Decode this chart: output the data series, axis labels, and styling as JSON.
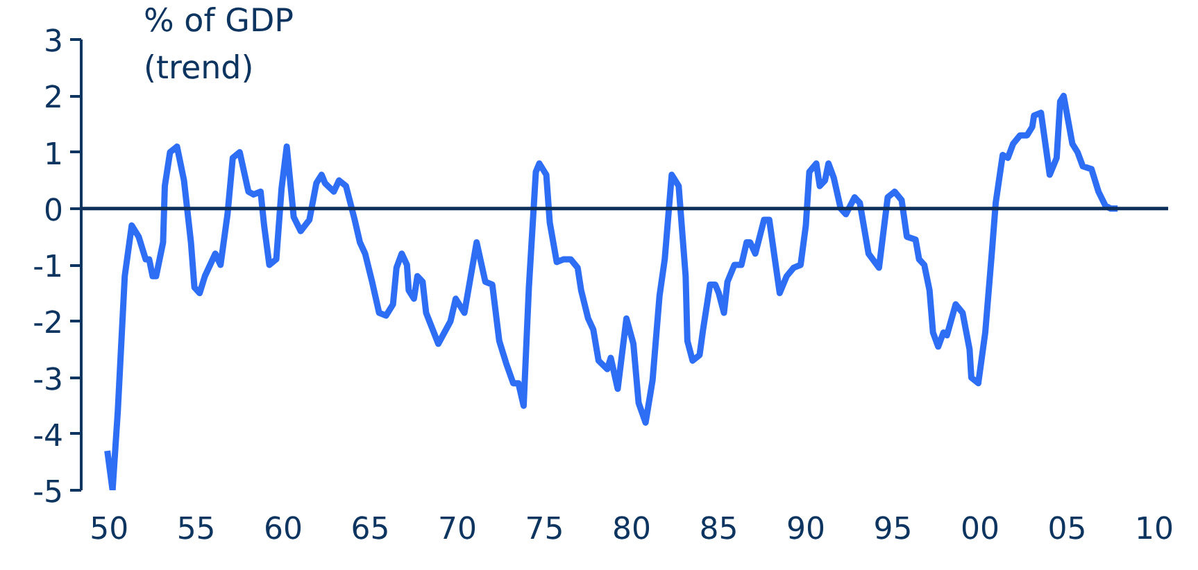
{
  "chart_data": {
    "type": "line",
    "ylabel": "% of GDP\n(trend)",
    "x": [
      1949.9,
      1950.2,
      1950.5,
      1950.9,
      1951.3,
      1951.7,
      1952.1,
      1952.3,
      1952.5,
      1952.7,
      1953.1,
      1953.2,
      1953.5,
      1953.9,
      1954.3,
      1954.7,
      1954.9,
      1955.2,
      1955.5,
      1956.1,
      1956.4,
      1956.8,
      1957.1,
      1957.5,
      1958.0,
      1958.3,
      1958.7,
      1958.9,
      1959.2,
      1959.6,
      1959.9,
      1960.2,
      1960.6,
      1961.0,
      1961.5,
      1961.9,
      1962.2,
      1962.4,
      1962.9,
      1963.2,
      1963.6,
      1964.1,
      1964.4,
      1964.7,
      1965.1,
      1965.5,
      1965.9,
      1966.3,
      1966.5,
      1966.8,
      1967.1,
      1967.2,
      1967.5,
      1967.7,
      1968.0,
      1968.2,
      1968.9,
      1969.6,
      1969.9,
      1970.4,
      1971.1,
      1971.6,
      1972.0,
      1972.4,
      1972.8,
      1973.2,
      1973.5,
      1973.8,
      1974.1,
      1974.5,
      1974.7,
      1975.1,
      1975.3,
      1975.7,
      1976.1,
      1976.5,
      1976.9,
      1977.1,
      1977.5,
      1977.8,
      1978.1,
      1978.6,
      1978.8,
      1979.2,
      1979.7,
      1980.1,
      1980.4,
      1980.8,
      1981.2,
      1981.6,
      1981.9,
      1982.3,
      1982.7,
      1983.1,
      1983.2,
      1983.5,
      1983.9,
      1984.1,
      1984.5,
      1984.8,
      1985.0,
      1985.3,
      1985.5,
      1985.9,
      1986.3,
      1986.6,
      1986.8,
      1987.1,
      1987.6,
      1987.9,
      1988.5,
      1988.9,
      1989.3,
      1989.7,
      1990.0,
      1990.2,
      1990.6,
      1990.8,
      1991.1,
      1991.3,
      1991.6,
      1992.0,
      1992.3,
      1992.8,
      1993.1,
      1993.6,
      1994.2,
      1994.5,
      1994.7,
      1995.1,
      1995.5,
      1995.8,
      1996.3,
      1996.5,
      1996.8,
      1997.1,
      1997.3,
      1997.6,
      1997.9,
      1998.1,
      1998.6,
      1999.0,
      1999.4,
      1999.5,
      1999.9,
      2000.3,
      2000.7,
      2000.9,
      2001.3,
      2001.6,
      2001.9,
      2002.3,
      2002.7,
      2003.0,
      2003.1,
      2003.5,
      2004.0,
      2004.4,
      2004.6,
      2004.8,
      2005.3,
      2005.6,
      2005.9,
      2006.4,
      2006.8,
      2007.2,
      2007.5,
      2007.9
    ],
    "series": [
      {
        "color": "#2e6ef5",
        "values": [
          -4.3,
          -5.0,
          -3.6,
          -1.2,
          -0.3,
          -0.5,
          -0.9,
          -0.9,
          -1.2,
          -1.2,
          -0.6,
          0.4,
          1.0,
          1.1,
          0.5,
          -0.6,
          -1.4,
          -1.5,
          -1.2,
          -0.8,
          -1.0,
          -0.1,
          0.9,
          1.0,
          0.3,
          0.25,
          0.3,
          -0.3,
          -1.0,
          -0.9,
          0.35,
          1.1,
          -0.15,
          -0.4,
          -0.2,
          0.45,
          0.6,
          0.45,
          0.3,
          0.5,
          0.4,
          -0.2,
          -0.6,
          -0.8,
          -1.3,
          -1.85,
          -1.9,
          -1.7,
          -1.05,
          -0.8,
          -1.0,
          -1.45,
          -1.6,
          -1.2,
          -1.3,
          -1.85,
          -2.4,
          -2.0,
          -1.6,
          -1.85,
          -0.6,
          -1.3,
          -1.35,
          -2.35,
          -2.75,
          -3.1,
          -3.1,
          -3.5,
          -1.4,
          0.65,
          0.8,
          0.6,
          -0.25,
          -0.95,
          -0.9,
          -0.9,
          -1.05,
          -1.45,
          -1.95,
          -2.15,
          -2.7,
          -2.85,
          -2.65,
          -3.2,
          -1.95,
          -2.4,
          -3.45,
          -3.8,
          -3.05,
          -1.55,
          -0.9,
          0.6,
          0.4,
          -1.2,
          -2.35,
          -2.7,
          -2.6,
          -2.15,
          -1.35,
          -1.35,
          -1.5,
          -1.85,
          -1.3,
          -1.0,
          -1.0,
          -0.6,
          -0.6,
          -0.8,
          -0.2,
          -0.2,
          -1.5,
          -1.2,
          -1.05,
          -1.0,
          -0.3,
          0.65,
          0.8,
          0.4,
          0.5,
          0.8,
          0.55,
          0.0,
          -0.1,
          0.2,
          0.1,
          -0.8,
          -1.05,
          -0.3,
          0.2,
          0.3,
          0.15,
          -0.5,
          -0.55,
          -0.9,
          -1.0,
          -1.45,
          -2.2,
          -2.45,
          -2.2,
          -2.25,
          -1.7,
          -1.85,
          -2.5,
          -3.0,
          -3.1,
          -2.2,
          -0.7,
          0.1,
          0.95,
          0.9,
          1.15,
          1.3,
          1.3,
          1.45,
          1.65,
          1.7,
          0.6,
          0.9,
          1.9,
          2.0,
          1.15,
          1.0,
          0.75,
          0.7,
          0.3,
          0.05,
          0.0,
          0.0
        ]
      }
    ],
    "xlim": [
      1948.4,
      2010.8
    ],
    "ylim": [
      -5,
      3
    ],
    "xticks": [
      {
        "value": 1950,
        "label": "50"
      },
      {
        "value": 1955,
        "label": "55"
      },
      {
        "value": 1960,
        "label": "60"
      },
      {
        "value": 1965,
        "label": "65"
      },
      {
        "value": 1970,
        "label": "70"
      },
      {
        "value": 1975,
        "label": "75"
      },
      {
        "value": 1980,
        "label": "80"
      },
      {
        "value": 1985,
        "label": "85"
      },
      {
        "value": 1990,
        "label": "90"
      },
      {
        "value": 1995,
        "label": "95"
      },
      {
        "value": 2000,
        "label": "00"
      },
      {
        "value": 2005,
        "label": "05"
      },
      {
        "value": 2010,
        "label": "10"
      }
    ],
    "yticks": [
      -5,
      -4,
      -3,
      -2,
      -1,
      0,
      1,
      2,
      3
    ],
    "ref_lines": [
      {
        "axis": "y",
        "value": 0,
        "color": "#0d2f5a"
      }
    ],
    "grid": false,
    "marker": "none",
    "line_style": "solid"
  }
}
